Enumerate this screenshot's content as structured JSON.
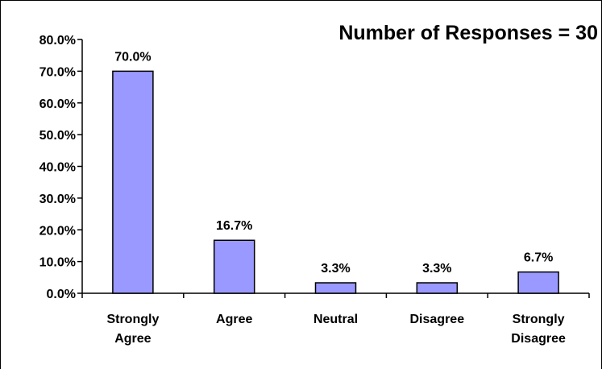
{
  "chart_data": {
    "type": "bar",
    "title": "Number of Responses = 30",
    "categories": [
      [
        "Strongly",
        "Agree"
      ],
      [
        "Agree"
      ],
      [
        "Neutral"
      ],
      [
        "Disagree"
      ],
      [
        "Strongly",
        "Disagree"
      ]
    ],
    "values": [
      70.0,
      16.7,
      3.3,
      3.3,
      6.7
    ],
    "data_labels": [
      "70.0%",
      "16.7%",
      "3.3%",
      "3.3%",
      "6.7%"
    ],
    "y_ticks": [
      "0.0%",
      "10.0%",
      "20.0%",
      "30.0%",
      "40.0%",
      "50.0%",
      "60.0%",
      "70.0%",
      "80.0%"
    ],
    "ylim": [
      0,
      80
    ],
    "xlabel": "",
    "ylabel": "",
    "grid": false,
    "legend": "none",
    "colors": {
      "bar_fill": "#9999ff",
      "bar_stroke": "#000000",
      "axis": "#000000",
      "frame": "#000000"
    }
  }
}
